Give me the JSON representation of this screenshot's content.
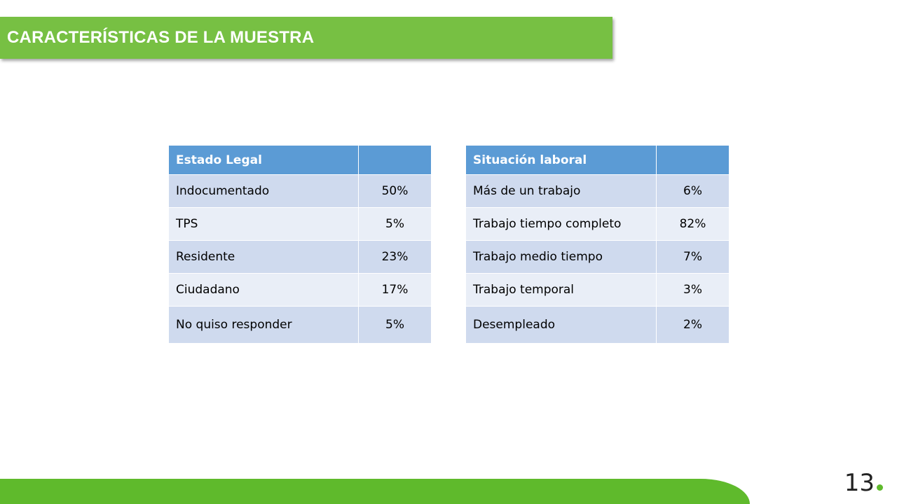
{
  "slide": {
    "title": "CARACTERÍSTICAS DE LA MUESTRA",
    "page_number": "13",
    "accent_color": "#77c043",
    "table_header_color": "#5b9bd5"
  },
  "table_legal": {
    "header": [
      "Estado Legal",
      ""
    ],
    "rows": [
      [
        "Indocumentado",
        "50%"
      ],
      [
        "TPS",
        "5%"
      ],
      [
        "Residente",
        "23%"
      ],
      [
        "Ciudadano",
        "17%"
      ],
      [
        "No quiso responder",
        "5%"
      ]
    ]
  },
  "table_work": {
    "header": [
      "Situación laboral",
      ""
    ],
    "rows": [
      [
        "Más de un trabajo",
        "6%"
      ],
      [
        "Trabajo tiempo completo",
        "82%"
      ],
      [
        "Trabajo medio tiempo",
        "7%"
      ],
      [
        "Trabajo temporal",
        "3%"
      ],
      [
        "Desempleado",
        "2%"
      ]
    ]
  }
}
